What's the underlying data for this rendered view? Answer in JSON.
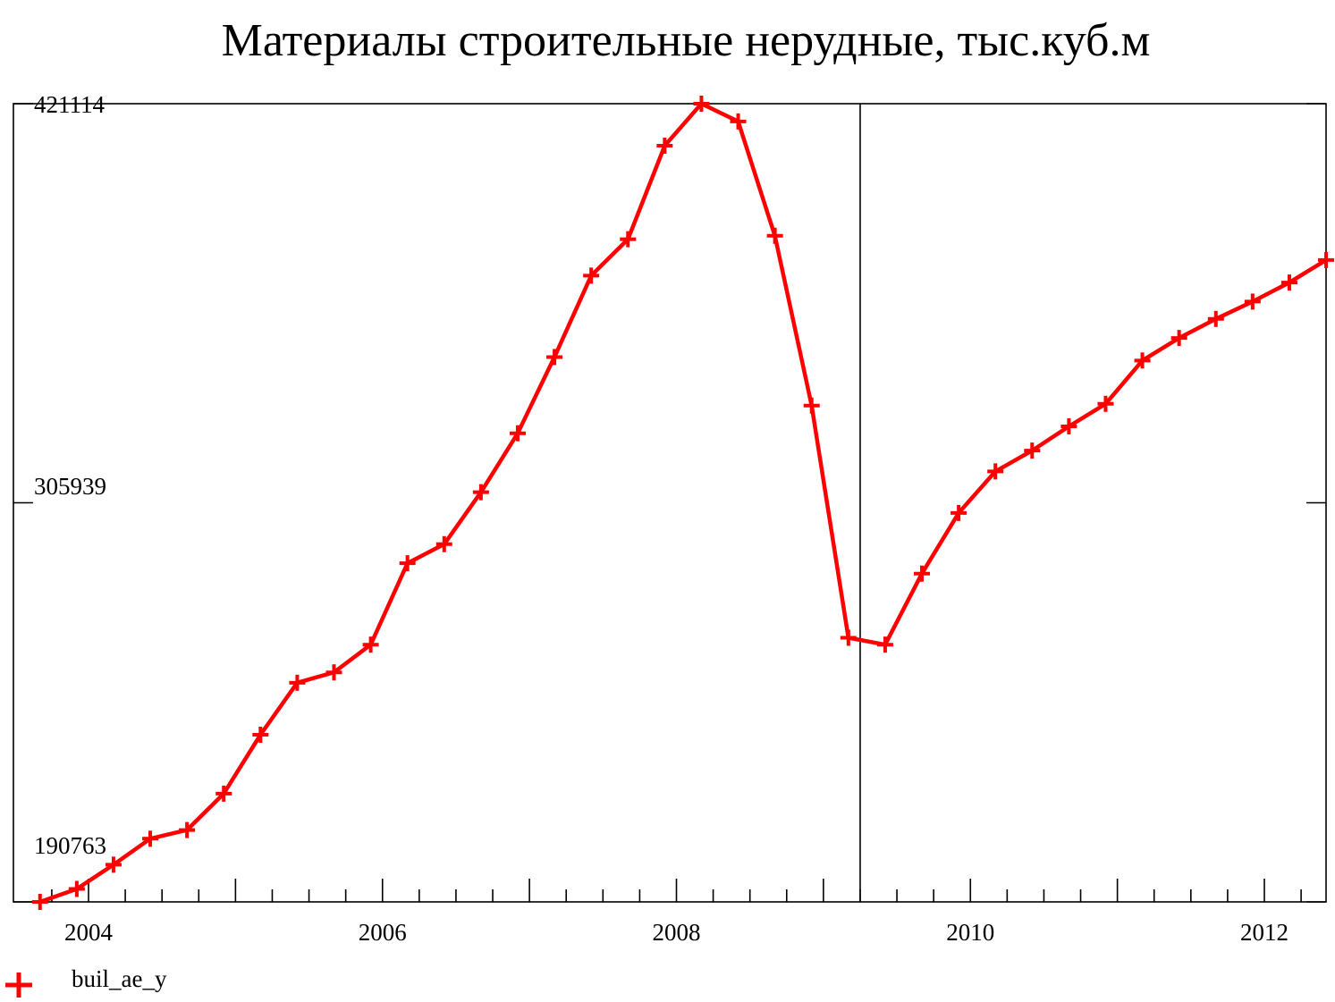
{
  "chart_data": {
    "type": "line",
    "title": "Материалы строительные нерудные, тыс.куб.м",
    "xlabel": "",
    "ylabel": "",
    "y_tick_labels": [
      "421114",
      "305939",
      "190763"
    ],
    "y_ticks": [
      421114,
      305939,
      190763
    ],
    "x_tick_labels": [
      "2004",
      "2006",
      "2008",
      "2010",
      "2012"
    ],
    "x_ticks": [
      2004,
      2006,
      2008,
      2010,
      2012
    ],
    "xlim": [
      2003.55,
      2012.6
    ],
    "ylim": [
      190763,
      421114
    ],
    "legend_position": "bottom-left",
    "grid": false,
    "divider_x": 2009.25,
    "series": [
      {
        "name": "buil_ae_y",
        "color": "#ff0000",
        "marker": "plus",
        "x": [
          2003.67,
          2003.92,
          2004.17,
          2004.42,
          2004.67,
          2004.92,
          2005.17,
          2005.42,
          2005.67,
          2005.92,
          2006.17,
          2006.42,
          2006.67,
          2006.92,
          2007.17,
          2007.42,
          2007.67,
          2007.92,
          2008.17,
          2008.42,
          2008.67,
          2008.92,
          2009.17,
          2009.42,
          2009.67,
          2009.92,
          2010.17,
          2010.42,
          2010.67,
          2010.92,
          2011.17,
          2011.42,
          2011.67,
          2011.92,
          2012.17,
          2012.42
        ],
        "y": [
          190763,
          194500,
          201500,
          209000,
          211500,
          222000,
          239000,
          254000,
          257000,
          265000,
          288500,
          294000,
          309000,
          326000,
          348000,
          371500,
          382000,
          409000,
          421114,
          416000,
          383000,
          334000,
          267000,
          265000,
          285500,
          303000,
          315000,
          321000,
          328000,
          334500,
          347000,
          353500,
          359000,
          364000,
          369500,
          376000
        ]
      }
    ]
  }
}
